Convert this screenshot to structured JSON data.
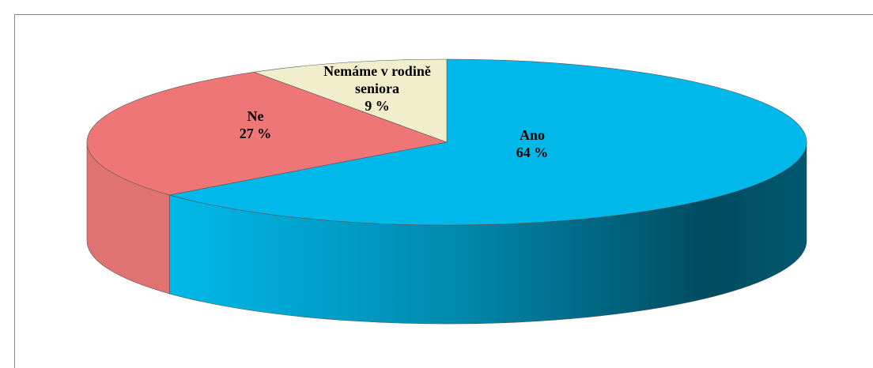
{
  "chart_data": {
    "type": "pie",
    "categories": [
      "Ano",
      "Ne",
      "Nemáme v rodině seniora"
    ],
    "values": [
      64,
      27,
      9
    ],
    "value_labels": [
      "64 %",
      "27 %",
      "9 %"
    ],
    "colors": [
      "#00b9ea",
      "#ee7676",
      "#f1efcb"
    ]
  }
}
